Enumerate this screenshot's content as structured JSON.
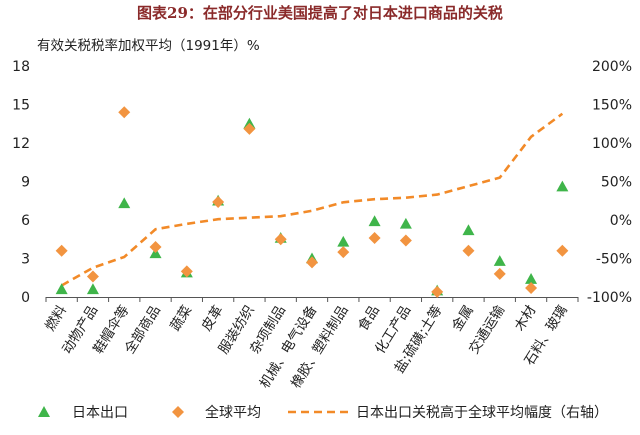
{
  "figure_title": "图表29：在部分行业美国提高了对日本进口商品的关税",
  "chart_data": {
    "type": "scatter",
    "title": "",
    "ylabel": "有效关税税率加权平均（1991年）%",
    "ylim": [
      0,
      18
    ],
    "y_ticks": [
      0,
      3,
      6,
      9,
      12,
      15,
      18
    ],
    "y2lim": [
      -100,
      200
    ],
    "y2_ticks": [
      "-100%",
      "-50%",
      "0%",
      "50%",
      "100%",
      "150%",
      "200%"
    ],
    "y2_values": [
      -100,
      -50,
      0,
      50,
      100,
      150,
      200
    ],
    "grid": false,
    "legend_position": "bottom",
    "categories": [
      "燃料",
      "动物产品",
      "鞋帽伞等",
      "全部商品",
      "蔬菜",
      "皮革",
      "服装纺织",
      "杂项制品",
      "机械、电气设备",
      "橡胶、塑料制品",
      "食品",
      "化工产品",
      "盐;硫磺;土等",
      "金属",
      "交通运输",
      "木材",
      "石料、玻璃"
    ],
    "series": [
      {
        "name": "日本出口",
        "marker": "triangle",
        "color": "#3fb54a",
        "axis": "left",
        "values": [
          0.6,
          0.6,
          7.3,
          3.4,
          1.9,
          7.5,
          13.5,
          4.6,
          3.0,
          4.3,
          5.9,
          5.7,
          0.5,
          5.2,
          2.8,
          1.4,
          8.6
        ]
      },
      {
        "name": "全球平均",
        "marker": "diamond",
        "color": "#f29440",
        "axis": "left",
        "values": [
          3.6,
          1.6,
          14.4,
          3.9,
          2.0,
          7.4,
          13.1,
          4.5,
          2.7,
          3.5,
          4.6,
          4.4,
          0.4,
          3.6,
          1.8,
          0.7,
          3.6
        ]
      },
      {
        "name": "日本出口关税高于全球平均幅度（右轴）",
        "marker": "dashed-line",
        "color": "#f28a28",
        "axis": "right",
        "values": [
          -85,
          -62,
          -48,
          -12,
          -5,
          1,
          3,
          5,
          12,
          23,
          27,
          29,
          33,
          44,
          55,
          108,
          138
        ]
      }
    ]
  }
}
